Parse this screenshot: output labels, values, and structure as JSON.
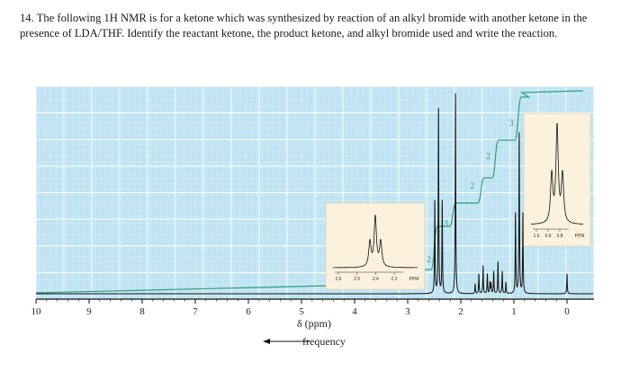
{
  "question": {
    "text": "14. The following 1H NMR is for a ketone which was synthesized by reaction of an alkyl bromide with another ketone in the presence of LDA/THF. Identify the reactant ketone, the product ketone, and alkyl bromide used and write the reaction."
  },
  "chart_data": {
    "type": "line",
    "xlabel": "δ (ppm)",
    "direction_label": "frequency",
    "xlim": [
      10,
      0
    ],
    "x_ticks": [
      10,
      9,
      8,
      7,
      6,
      5,
      4,
      3,
      2,
      1,
      0
    ],
    "grid": true,
    "colors": {
      "grid_bg": "#bfe3f2",
      "grid_line": "#ffffff",
      "spectrum": "#111111",
      "integral": "#2f9e7b",
      "inset_bg": "#fbf1dc"
    },
    "peaks": [
      {
        "shift": 2.42,
        "multiplicity": "triplet",
        "height": 0.92,
        "integration": "2"
      },
      {
        "shift": 2.1,
        "multiplicity": "singlet",
        "height": 1.0,
        "integration": "3"
      },
      {
        "shift": 1.58,
        "multiplicity": "multiplet",
        "height": 0.14,
        "integration": "2"
      },
      {
        "shift": 1.3,
        "multiplicity": "multiplet",
        "height": 0.16,
        "integration": "2"
      },
      {
        "shift": 0.9,
        "multiplicity": "triplet",
        "height": 0.8,
        "integration": "3"
      },
      {
        "shift": 0.0,
        "multiplicity": "singlet",
        "height": 0.1,
        "integration": ""
      }
    ],
    "insets": [
      {
        "ticks": [
          "2.6",
          "2.5",
          "2.4",
          "2.3"
        ],
        "unit": "PPM"
      },
      {
        "ticks": [
          "1.0",
          "0.9",
          "0.8"
        ],
        "unit": "PPM"
      }
    ]
  }
}
